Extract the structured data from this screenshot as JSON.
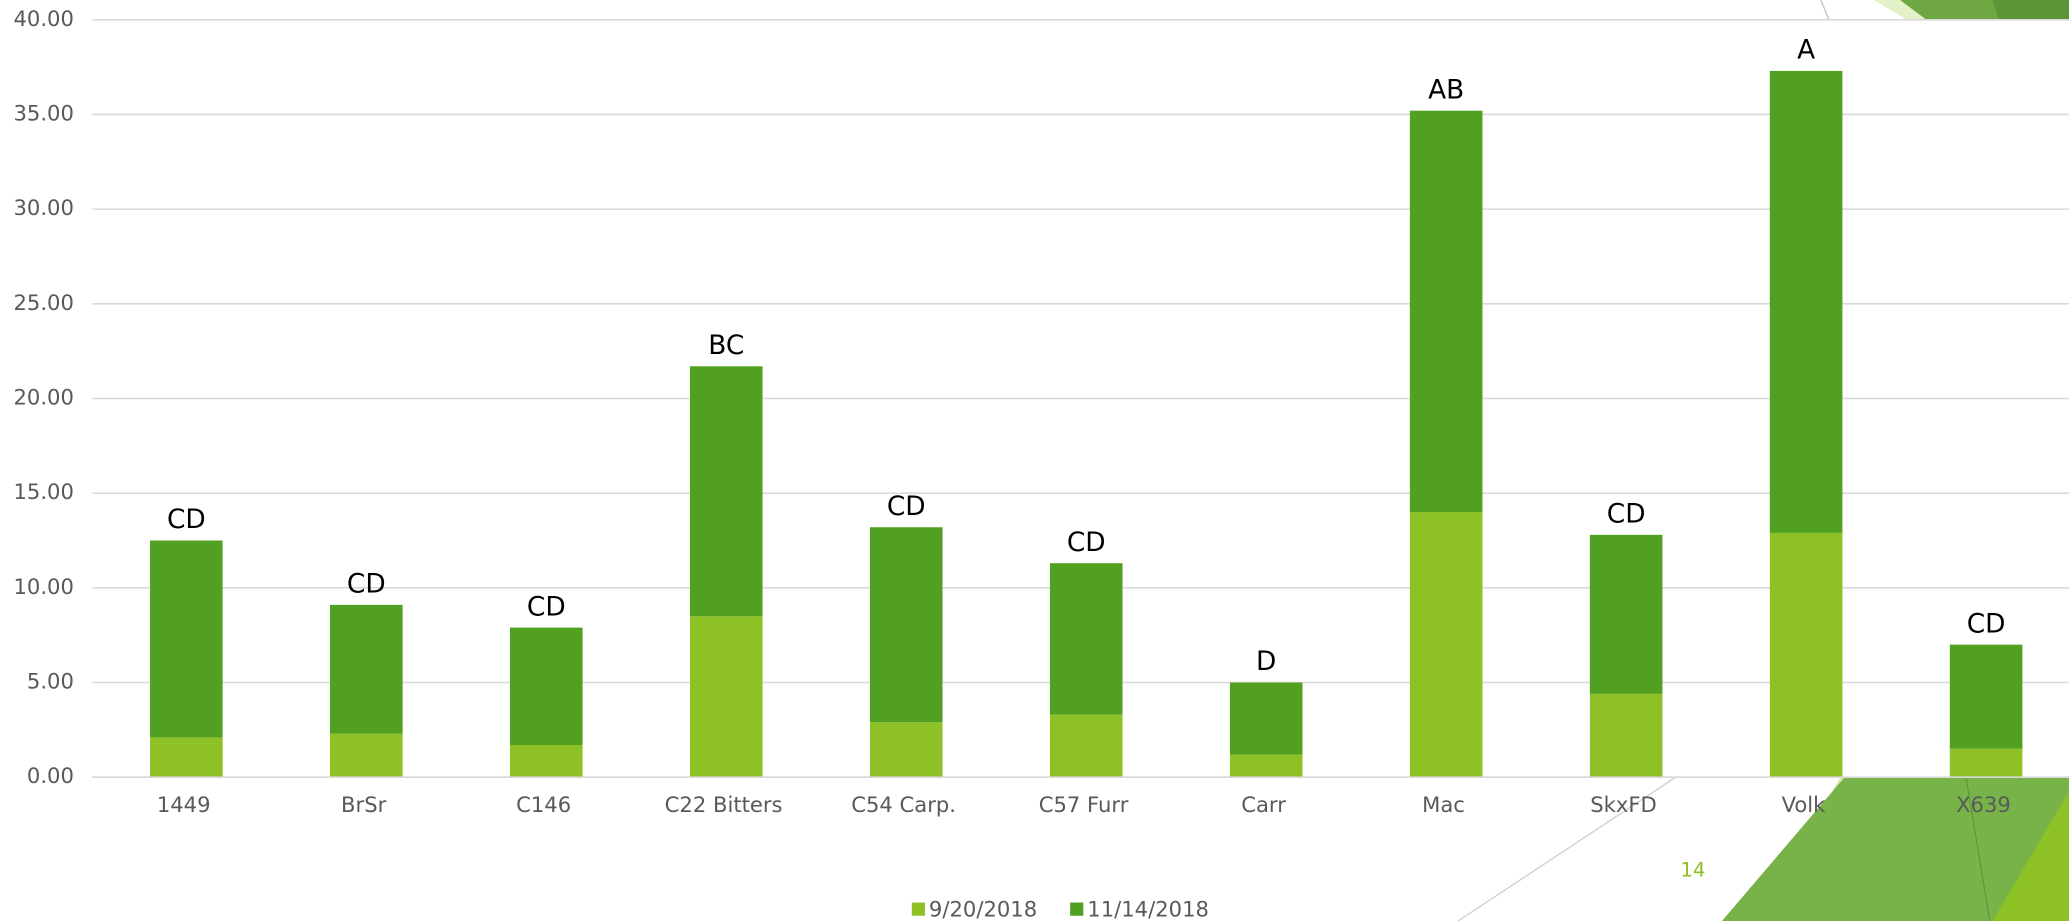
{
  "chart_data": {
    "type": "stacked_bar",
    "categories": [
      "1449",
      "BrSr",
      "C146",
      "C22 Bitters",
      "C54 Carp.",
      "C57 Furr",
      "Carr",
      "Mac",
      "SkxFD",
      "Volk",
      "X639"
    ],
    "series": [
      {
        "name": "9/20/2018",
        "color": "#8dc126",
        "values": [
          2.1,
          2.3,
          1.7,
          8.5,
          2.9,
          3.3,
          1.2,
          14.0,
          4.4,
          12.9,
          1.5
        ]
      },
      {
        "name": "11/14/2018",
        "color": "#52a022",
        "values": [
          10.4,
          6.8,
          6.2,
          13.2,
          10.3,
          8.0,
          3.8,
          21.2,
          8.4,
          24.4,
          5.5
        ]
      }
    ],
    "annotations": [
      "CD",
      "CD",
      "CD",
      "BC",
      "CD",
      "CD",
      "D",
      "AB",
      "CD",
      "A",
      "CD"
    ],
    "ylim": [
      0,
      40
    ],
    "yticks": [
      {
        "value": 0,
        "label": "0.00"
      },
      {
        "value": 5,
        "label": "5.00"
      },
      {
        "value": 10,
        "label": "10.00"
      },
      {
        "value": 15,
        "label": "15.00"
      },
      {
        "value": 20,
        "label": "20.00"
      },
      {
        "value": 25,
        "label": "25.00"
      },
      {
        "value": 30,
        "label": "30.00"
      },
      {
        "value": 35,
        "label": "35.00"
      },
      {
        "value": 40,
        "label": "40.00"
      }
    ],
    "grid": true,
    "legend": "bottom",
    "page_number": "14"
  }
}
